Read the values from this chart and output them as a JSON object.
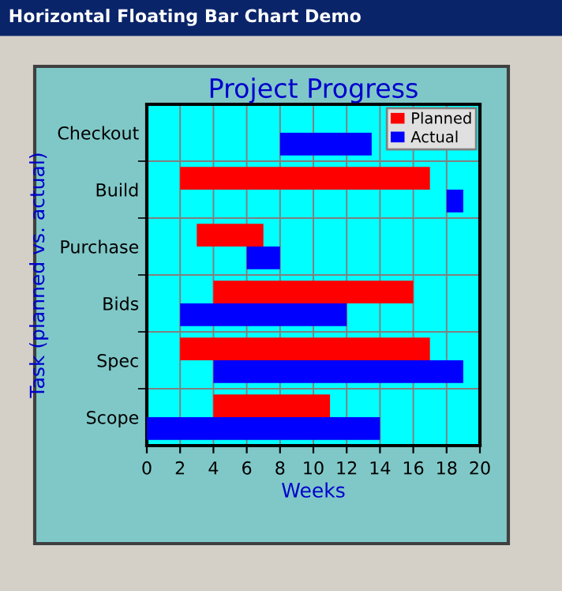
{
  "chart_data": {
    "type": "bar",
    "orientation": "horizontal",
    "title": "Project Progress",
    "xlabel": "Weeks",
    "ylabel": "Task (planned vs. actual)",
    "annotations": [
      "Horizontal Floating Bar Chart Demo"
    ],
    "categories": [
      "Checkout",
      "Build",
      "Purchase",
      "Bids",
      "Spec",
      "Scope"
    ],
    "series": [
      {
        "name": "Planned",
        "color": "#ff0000",
        "base": [
          null,
          2,
          3,
          4,
          2,
          4
        ],
        "values": [
          null,
          15,
          4,
          12,
          15,
          7
        ]
      },
      {
        "name": "Actual",
        "color": "#0000ff",
        "base": [
          8,
          18,
          6,
          2,
          4,
          0
        ],
        "values": [
          5.5,
          1,
          2,
          10,
          15,
          14
        ]
      }
    ],
    "xlim": [
      0,
      20
    ],
    "xticks": [
      0,
      2,
      4,
      6,
      8,
      10,
      12,
      14,
      16,
      18,
      20
    ],
    "grid": true,
    "legend": "top right"
  }
}
